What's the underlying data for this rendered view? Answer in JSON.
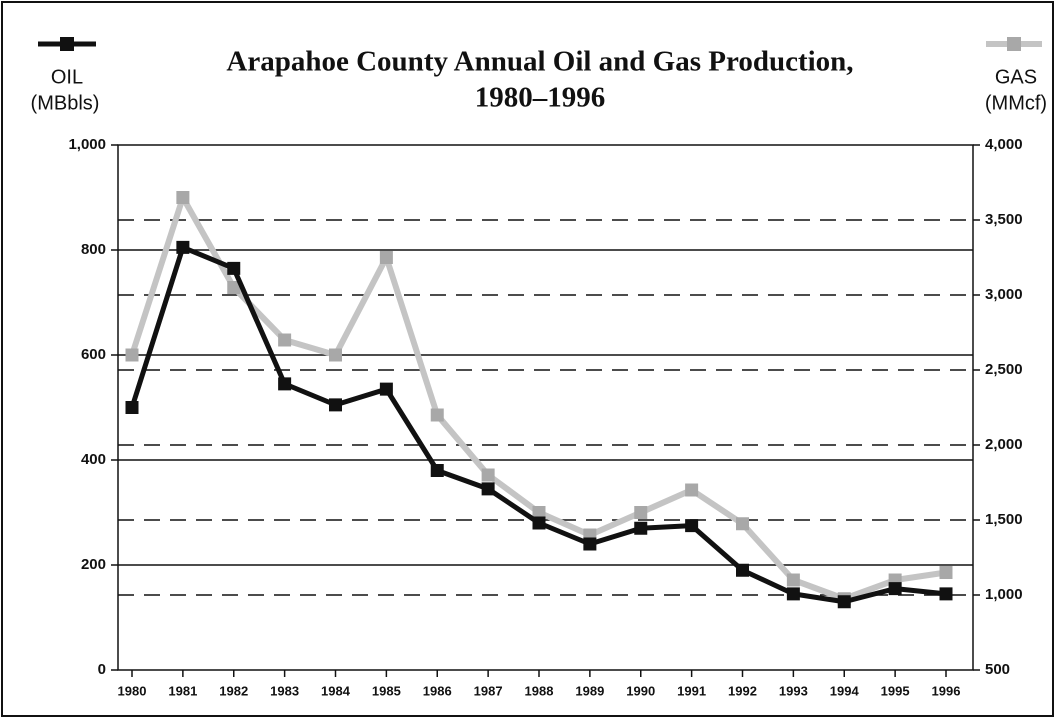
{
  "chart_data": {
    "type": "line",
    "title": [
      "Arapahoe County Annual Oil and Gas Production,",
      "1980–1996"
    ],
    "categories": [
      "1980",
      "1981",
      "1982",
      "1983",
      "1984",
      "1985",
      "1986",
      "1987",
      "1988",
      "1989",
      "1990",
      "1991",
      "1992",
      "1993",
      "1994",
      "1995",
      "1996"
    ],
    "series": [
      {
        "name": "OIL",
        "color": "#111111",
        "values": [
          500,
          805,
          765,
          545,
          505,
          535,
          380,
          345,
          280,
          240,
          270,
          275,
          190,
          145,
          130,
          155,
          145
        ]
      },
      {
        "name": "GAS",
        "color": "#c4c4c4",
        "axis": "y2",
        "values": [
          2600,
          3650,
          3050,
          2700,
          2600,
          3250,
          2200,
          1800,
          1550,
          1400,
          1550,
          1700,
          1475,
          1100,
          975,
          1100,
          1150
        ]
      }
    ],
    "ylabel": "(MBbls)",
    "y2label": "(MMcf)",
    "ylim": [
      0,
      1000
    ],
    "yticks": [
      0,
      200,
      400,
      600,
      800,
      {
        "value": 1000,
        "label": "1,000"
      }
    ],
    "y2lim": [
      500,
      4000
    ],
    "y2ticks": [
      500,
      {
        "value": 1000,
        "label": "1,000"
      },
      {
        "value": 1500,
        "label": "1,500"
      },
      {
        "value": 2000,
        "label": "2,000"
      },
      {
        "value": 2500,
        "label": "2,500"
      },
      {
        "value": 3000,
        "label": "3,000"
      },
      {
        "value": 3500,
        "label": "3,500"
      },
      {
        "value": 4000,
        "label": "4,000"
      }
    ],
    "grid": true
  }
}
